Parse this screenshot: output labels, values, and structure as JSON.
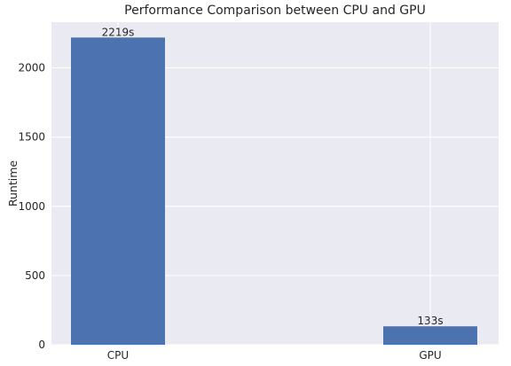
{
  "chart_data": {
    "type": "bar",
    "title": "Performance Comparison between CPU and GPU",
    "xlabel": "",
    "ylabel": "Runtime",
    "categories": [
      "CPU",
      "GPU"
    ],
    "values": [
      2219,
      133
    ],
    "data_labels": [
      "2219s",
      "133s"
    ],
    "ylim": [
      0,
      2330
    ],
    "yticks": [
      0,
      500,
      1000,
      1500,
      2000
    ],
    "ytick_labels": [
      "0",
      "500",
      "1000",
      "1500",
      "2000"
    ],
    "grid": true,
    "legend": "none",
    "colors": {
      "bar": "#4c72b0",
      "plot_background": "#eaeaf2",
      "grid": "#ffffff"
    }
  }
}
